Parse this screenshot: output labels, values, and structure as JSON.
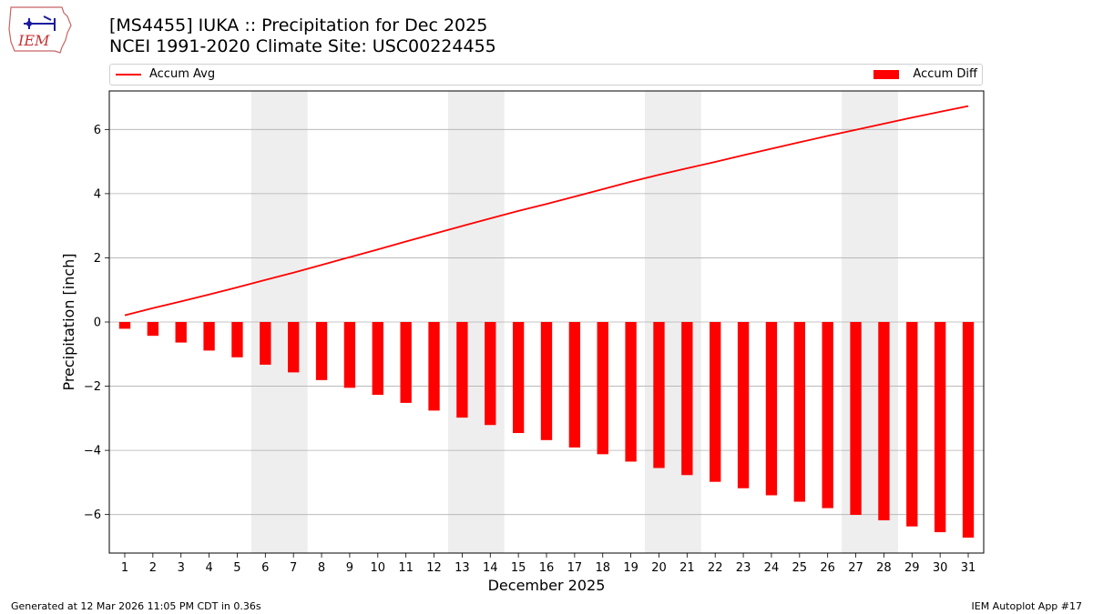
{
  "header": {
    "title_line1": "[MS4455] IUKA :: Precipitation for Dec 2025",
    "title_line2": "NCEI 1991-2020 Climate Site: USC00224455"
  },
  "logo": {
    "text": "IEM"
  },
  "footer": {
    "left": "Generated at 12 Mar 2026 11:05 PM CDT in 0.36s",
    "right": "IEM Autoplot App #17"
  },
  "colors": {
    "bar": "#ff0000",
    "line": "#ff0000",
    "weekend_shade": "#eeeeee",
    "grid": "#b0b0b0"
  },
  "chart_data": {
    "type": "bar",
    "xlabel": "December 2025",
    "ylabel": "Precipitation [inch]",
    "ylim": [
      -7.2,
      7.2
    ],
    "yticks": [
      -6,
      -4,
      -2,
      0,
      2,
      4,
      6
    ],
    "grid": "horizontal",
    "legend": "top",
    "x": [
      1,
      2,
      3,
      4,
      5,
      6,
      7,
      8,
      9,
      10,
      11,
      12,
      13,
      14,
      15,
      16,
      17,
      18,
      19,
      20,
      21,
      22,
      23,
      24,
      25,
      26,
      27,
      28,
      29,
      30,
      31
    ],
    "shaded_ranges": [
      [
        6,
        7
      ],
      [
        13,
        14
      ],
      [
        20,
        21
      ],
      [
        27,
        28
      ]
    ],
    "series": [
      {
        "name": "Accum Avg",
        "kind": "line",
        "values": [
          0.21,
          0.43,
          0.64,
          0.86,
          1.08,
          1.31,
          1.54,
          1.78,
          2.02,
          2.26,
          2.51,
          2.75,
          2.99,
          3.23,
          3.46,
          3.68,
          3.91,
          4.14,
          4.37,
          4.59,
          4.79,
          4.99,
          5.2,
          5.4,
          5.6,
          5.8,
          5.99,
          6.18,
          6.37,
          6.55,
          6.73
        ]
      },
      {
        "name": "Accum Diff",
        "kind": "bar",
        "values": [
          -0.21,
          -0.43,
          -0.64,
          -0.89,
          -1.1,
          -1.33,
          -1.57,
          -1.81,
          -2.05,
          -2.27,
          -2.52,
          -2.76,
          -2.98,
          -3.21,
          -3.46,
          -3.68,
          -3.91,
          -4.12,
          -4.35,
          -4.55,
          -4.77,
          -4.98,
          -5.18,
          -5.4,
          -5.6,
          -5.8,
          -6.01,
          -6.18,
          -6.37,
          -6.55,
          -6.72
        ]
      }
    ]
  }
}
